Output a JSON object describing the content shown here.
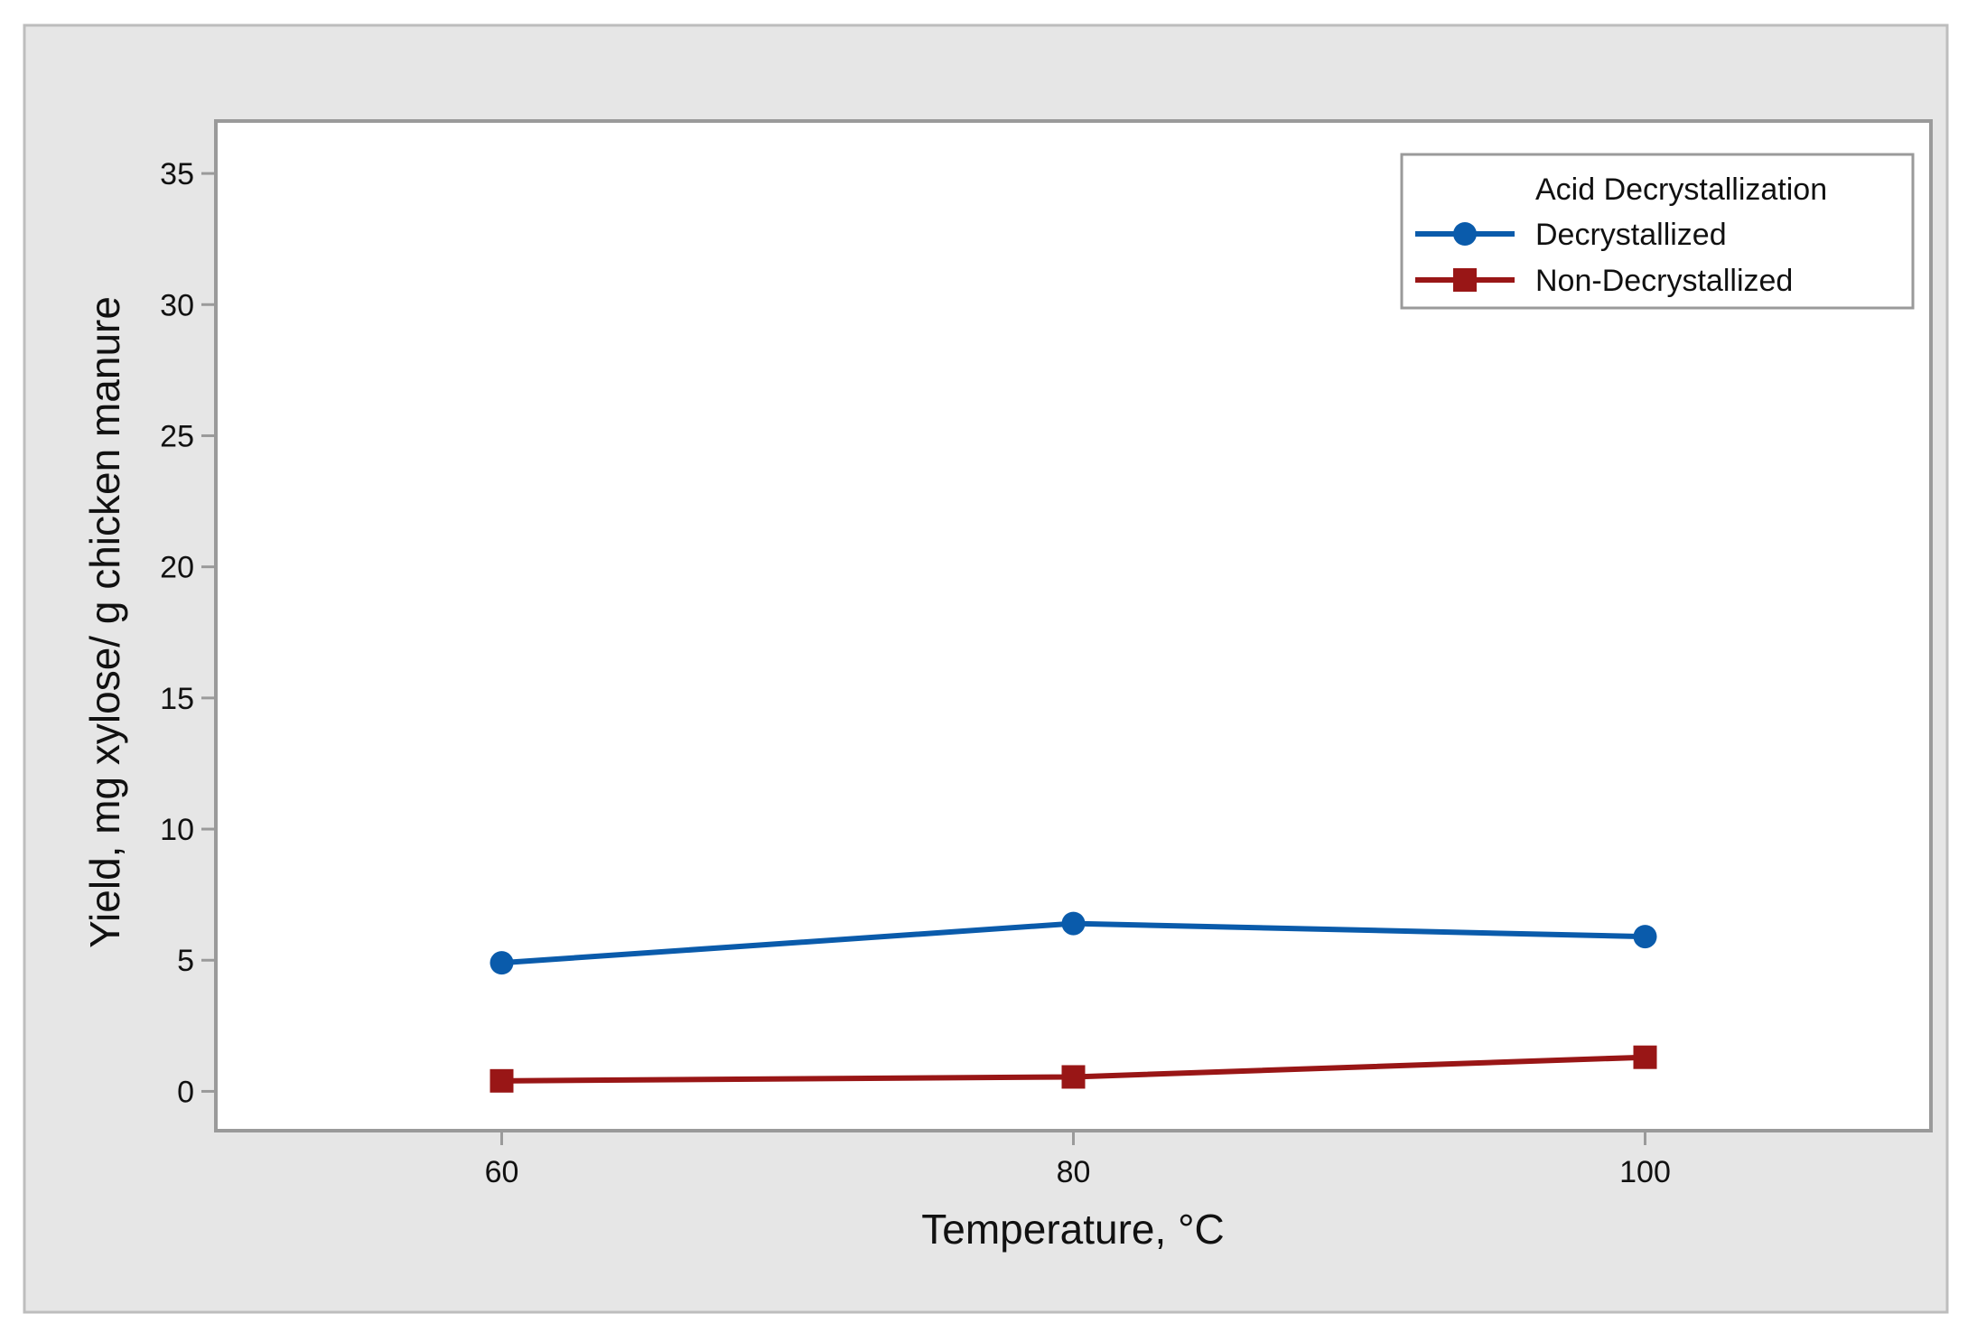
{
  "chart_data": {
    "type": "line",
    "title": "",
    "xlabel": "Temperature, °C",
    "ylabel": "Yield, mg xylose/ g chicken manure",
    "x": [
      60,
      80,
      100
    ],
    "xlim": [
      50,
      110
    ],
    "ylim": [
      -1.5,
      37
    ],
    "xticks": [
      "60",
      "80",
      "100"
    ],
    "yticks": [
      "0",
      "5",
      "10",
      "15",
      "20",
      "25",
      "30",
      "35"
    ],
    "grid": false,
    "legend": {
      "title": "Acid Decrystallization",
      "placement": "top-right"
    },
    "series": [
      {
        "name": "Decrystallized",
        "values": [
          4.9,
          6.4,
          5.9
        ],
        "color": "#0a5bab",
        "marker": "circle"
      },
      {
        "name": "Non-Decrystallized",
        "values": [
          0.4,
          0.55,
          1.3
        ],
        "color": "#991616",
        "marker": "square"
      }
    ]
  },
  "colors": {
    "outer_background": "#e6e6e6",
    "plot_background": "#ffffff",
    "frame": "#9a9a9a"
  }
}
